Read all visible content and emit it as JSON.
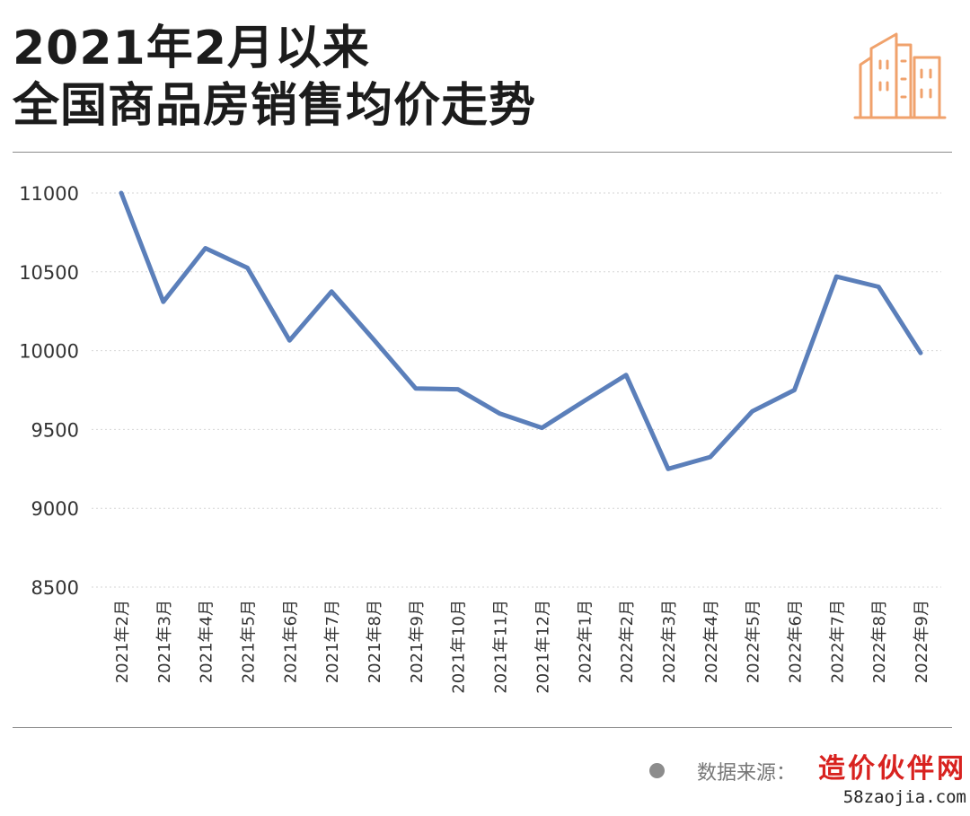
{
  "header": {
    "title_line1": "2021年2月以来",
    "title_line2": "全国商品房销售均价走势",
    "logo_icon": "buildings-icon",
    "logo_color": "#f0a26c"
  },
  "chart_data": {
    "type": "line",
    "title": "2021年2月以来 全国商品房销售均价走势",
    "categories": [
      "2021年2月",
      "2021年3月",
      "2021年4月",
      "2021年5月",
      "2021年6月",
      "2021年7月",
      "2021年8月",
      "2021年9月",
      "2021年10月",
      "2021年11月",
      "2021年12月",
      "2022年1月",
      "2022年2月",
      "2022年3月",
      "2022年4月",
      "2022年5月",
      "2022年6月",
      "2022年7月",
      "2022年8月",
      "2022年9月"
    ],
    "series": [
      {
        "values": [
          11000,
          10310,
          10650,
          10525,
          10065,
          10375,
          10070,
          9760,
          9755,
          9600,
          9510,
          9680,
          9845,
          9250,
          9325,
          9615,
          9750,
          10470,
          10405,
          9985
        ],
        "color": "#5b7fba"
      }
    ],
    "ylim": [
      8500,
      11000
    ],
    "yticks": [
      8500,
      9000,
      9500,
      10000,
      10500,
      11000
    ],
    "grid": true,
    "xlabel": "",
    "ylabel": ""
  },
  "footer": {
    "source_label": "数据来源：",
    "watermark_main": "造价伙伴网",
    "watermark_url": "58zaojia.com"
  }
}
